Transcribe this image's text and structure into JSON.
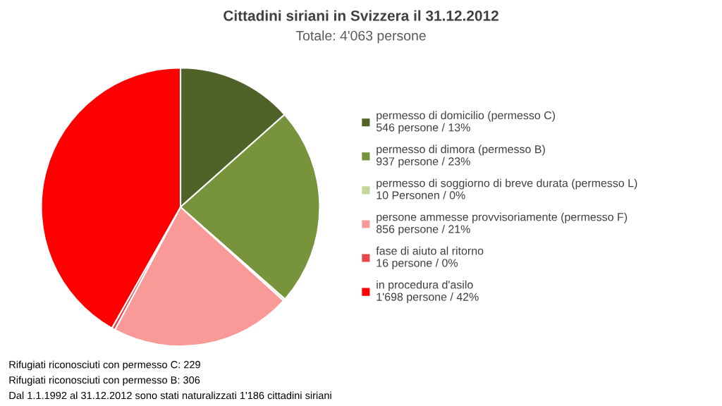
{
  "chart_data": {
    "type": "pie",
    "title": "Cittadini siriani in Svizzera il 31.12.2012",
    "subtitle": "Totale: 4'063 persone",
    "categories": [
      "permesso di domicilio (permesso C)",
      "permesso di dimora (permesso B)",
      "permesso di soggiorno di breve durata (permesso L)",
      "persone ammesse provvisoriamente (permesso F)",
      "fase di aiuto al ritorno",
      "in procedura d'asilo"
    ],
    "values": [
      546,
      937,
      10,
      856,
      16,
      1698
    ],
    "colors": [
      "#4f6228",
      "#77933c",
      "#c3d69b",
      "#f99a98",
      "#e8464a",
      "#ff0000"
    ],
    "value_labels": [
      "546 persone / 13%",
      "937 persone / 23%",
      "10 Personen / 0%",
      "856 persone / 21%",
      "16 persone / 0%",
      "1'698 persone / 42%"
    ],
    "legend": "right",
    "annotations": [
      "Rifugiati riconosciuti con permesso C: 229",
      "Rifugiati riconosciuti con permesso B: 306",
      "Dal 1.1.1992 al 31.12.2012 sono stati naturalizzati 1'186 cittadini siriani"
    ]
  }
}
